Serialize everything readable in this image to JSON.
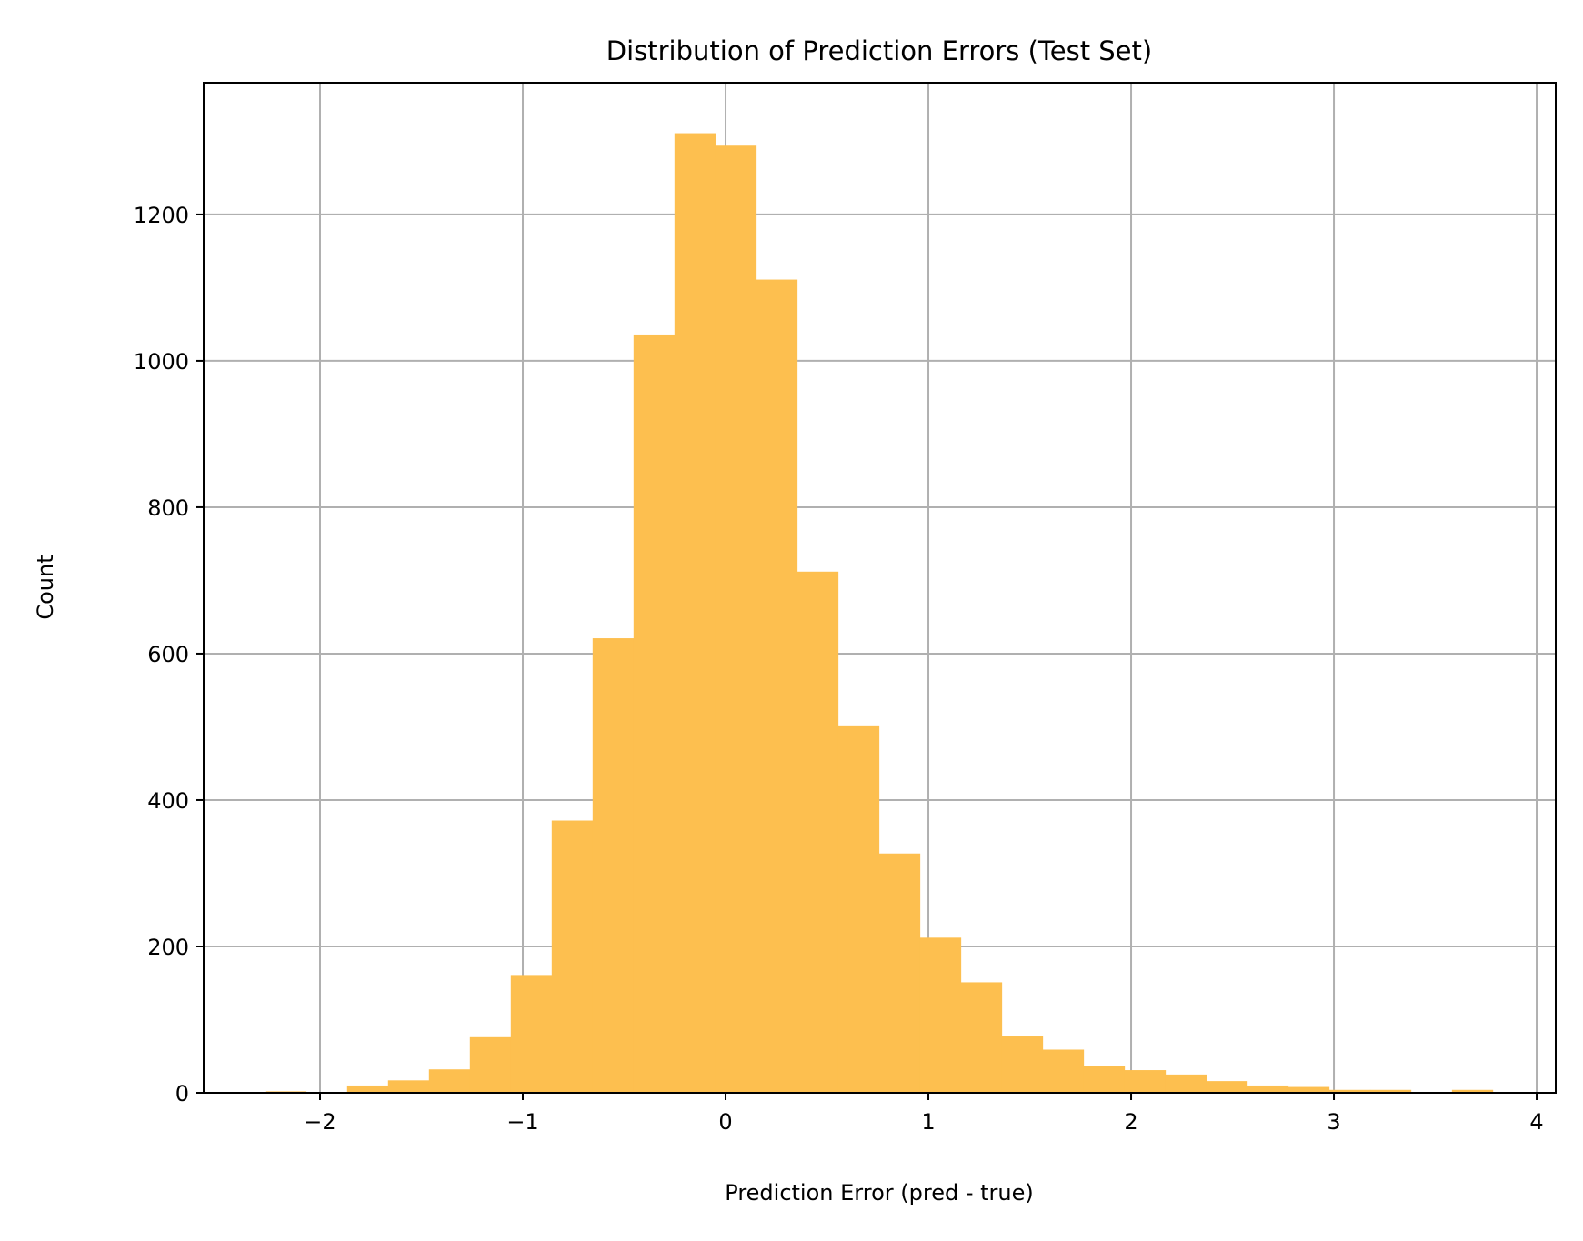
{
  "chart_data": {
    "type": "bar",
    "title": "Distribution of Prediction Errors (Test Set)",
    "xlabel": "Prediction Error (pred - true)",
    "ylabel": "Count",
    "bin_start": -2.27,
    "bin_width": 0.2018,
    "values": [
      2,
      0,
      10,
      17,
      32,
      76,
      161,
      372,
      621,
      1036,
      1311,
      1294,
      1111,
      712,
      502,
      327,
      212,
      151,
      77,
      59,
      37,
      31,
      25,
      16,
      10,
      8,
      4,
      4,
      0,
      4
    ],
    "xlim": [
      -2.574,
      4.094
    ],
    "ylim": [
      0,
      1380
    ],
    "xticks": [
      -2,
      -1,
      0,
      1,
      2,
      3,
      4
    ],
    "xtick_labels": [
      "−2",
      "−1",
      "0",
      "1",
      "2",
      "3",
      "4"
    ],
    "yticks": [
      0,
      200,
      400,
      600,
      800,
      1000,
      1200
    ],
    "ytick_labels": [
      "0",
      "200",
      "400",
      "600",
      "800",
      "1000",
      "1200"
    ],
    "grid": true,
    "color": "#fdbf4f",
    "grid_color": "#b0b0b0"
  }
}
